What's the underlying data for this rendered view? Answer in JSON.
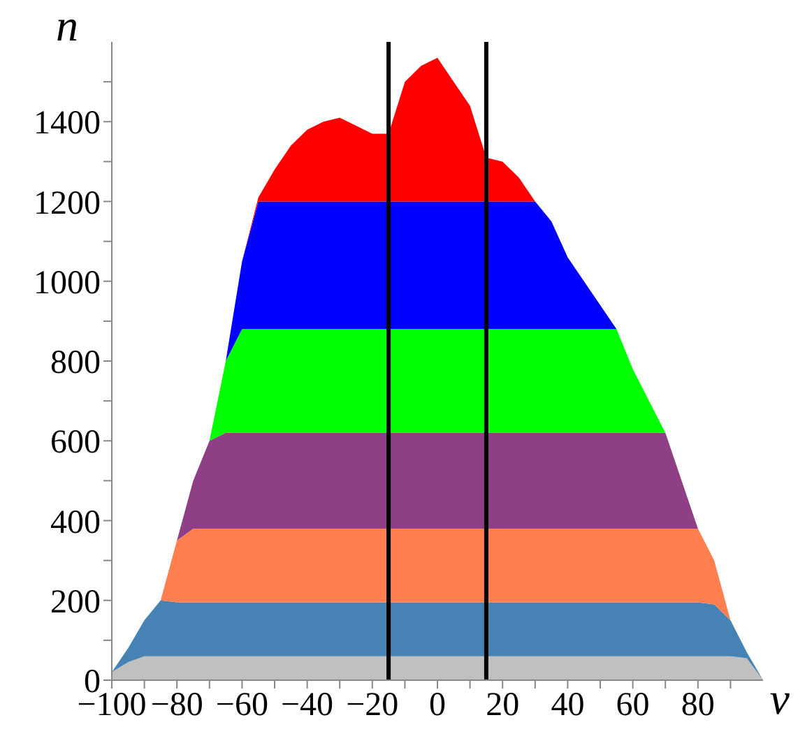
{
  "chart_data": {
    "type": "area",
    "stacked": true,
    "xlabel": "v",
    "ylabel": "n",
    "xlim": [
      -100,
      100
    ],
    "ylim": [
      0,
      1600
    ],
    "xticks": [
      -100,
      {
        "value": -90,
        "label": null
      },
      -80,
      {
        "value": -70,
        "label": null
      },
      -60,
      {
        "value": -50,
        "label": null
      },
      -40,
      {
        "value": -30,
        "label": null
      },
      -20,
      {
        "value": -10,
        "label": null
      },
      0,
      {
        "value": 10,
        "label": null
      },
      20,
      {
        "value": 30,
        "label": null
      },
      40,
      {
        "value": 50,
        "label": null
      },
      60,
      {
        "value": 70,
        "label": null
      },
      80,
      {
        "value": 90,
        "label": null
      }
    ],
    "yticks": [
      0,
      {
        "value": 100,
        "label": null
      },
      200,
      {
        "value": 300,
        "label": null
      },
      400,
      {
        "value": 500,
        "label": null
      },
      600,
      {
        "value": 700,
        "label": null
      },
      800,
      {
        "value": 900,
        "label": null
      },
      1000,
      {
        "value": 1100,
        "label": null
      },
      1200,
      {
        "value": 1300,
        "label": null
      },
      1400,
      {
        "value": 1500,
        "label": null
      }
    ],
    "x": [
      -100,
      -95,
      -90,
      -85,
      -80,
      -75,
      -70,
      -65,
      -60,
      -55,
      -50,
      -45,
      -40,
      -35,
      -30,
      -25,
      -20,
      -15,
      -10,
      -5,
      0,
      5,
      10,
      15,
      20,
      25,
      30,
      35,
      40,
      45,
      50,
      55,
      60,
      65,
      70,
      75,
      80,
      85,
      90,
      95,
      100
    ],
    "series": [
      {
        "color": "#c0c0c0",
        "values": [
          20,
          45,
          60,
          60,
          60,
          60,
          60,
          60,
          60,
          60,
          60,
          60,
          60,
          60,
          60,
          60,
          60,
          60,
          60,
          60,
          60,
          60,
          60,
          60,
          60,
          60,
          60,
          60,
          60,
          60,
          60,
          60,
          60,
          60,
          60,
          60,
          60,
          60,
          60,
          55,
          0
        ]
      },
      {
        "color": "#4682b4",
        "values": [
          0,
          35,
          90,
          140,
          135,
          135,
          135,
          135,
          135,
          135,
          135,
          135,
          135,
          135,
          135,
          135,
          135,
          135,
          135,
          135,
          135,
          135,
          135,
          135,
          135,
          135,
          135,
          135,
          135,
          135,
          135,
          135,
          135,
          135,
          135,
          135,
          135,
          130,
          90,
          15,
          0
        ]
      },
      {
        "color": "#ff7f50",
        "values": [
          0,
          0,
          0,
          0,
          155,
          185,
          185,
          185,
          185,
          185,
          185,
          185,
          185,
          185,
          185,
          185,
          185,
          185,
          185,
          185,
          185,
          185,
          185,
          185,
          185,
          185,
          185,
          185,
          185,
          185,
          185,
          185,
          185,
          185,
          185,
          185,
          185,
          110,
          0,
          0,
          0
        ]
      },
      {
        "color": "#8e3f86",
        "values": [
          0,
          0,
          0,
          0,
          0,
          120,
          220,
          240,
          240,
          240,
          240,
          240,
          240,
          240,
          240,
          240,
          240,
          240,
          240,
          240,
          240,
          240,
          240,
          240,
          240,
          240,
          240,
          240,
          240,
          240,
          240,
          240,
          240,
          240,
          240,
          120,
          0,
          0,
          0,
          0,
          0
        ]
      },
      {
        "color": "#00ff00",
        "values": [
          0,
          0,
          0,
          0,
          0,
          0,
          0,
          180,
          260,
          260,
          260,
          260,
          260,
          260,
          260,
          260,
          260,
          260,
          260,
          260,
          260,
          260,
          260,
          260,
          260,
          260,
          260,
          260,
          260,
          260,
          260,
          260,
          160,
          80,
          0,
          0,
          0,
          0,
          0,
          0,
          0
        ]
      },
      {
        "color": "#0000ff",
        "values": [
          0,
          0,
          0,
          0,
          0,
          0,
          0,
          0,
          170,
          320,
          320,
          320,
          320,
          320,
          320,
          320,
          320,
          320,
          320,
          320,
          320,
          320,
          320,
          320,
          320,
          320,
          320,
          270,
          180,
          120,
          60,
          0,
          0,
          0,
          0,
          0,
          0,
          0,
          0,
          0,
          0
        ]
      },
      {
        "color": "#ff0000",
        "values": [
          0,
          0,
          0,
          0,
          0,
          0,
          0,
          0,
          0,
          10,
          80,
          140,
          180,
          200,
          210,
          190,
          170,
          170,
          300,
          340,
          360,
          300,
          240,
          110,
          100,
          60,
          0,
          0,
          0,
          0,
          0,
          0,
          0,
          0,
          0,
          0,
          0,
          0,
          0,
          0,
          0
        ]
      }
    ],
    "ref_lines": [
      {
        "axis": "x",
        "value": -15,
        "color": "#000000"
      },
      {
        "axis": "x",
        "value": 15,
        "color": "#000000"
      }
    ]
  }
}
